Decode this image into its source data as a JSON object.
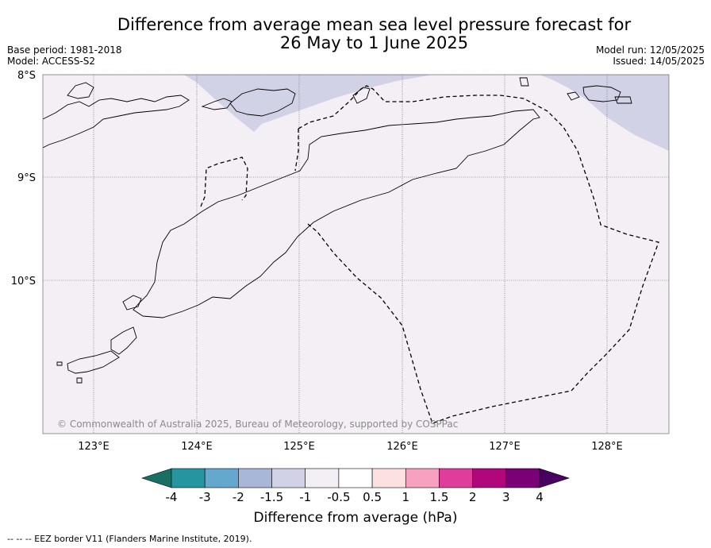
{
  "title": {
    "line1": "Difference from average mean sea level pressure forecast for",
    "line2": "26 May to 1 June 2025"
  },
  "meta": {
    "base_period": "Base period: 1981-2018",
    "model": "Model: ACCESS-S2",
    "model_run": "Model run: 12/05/2025",
    "issued": "Issued: 14/05/2025"
  },
  "map": {
    "lat_labels": [
      "8°S",
      "9°S",
      "10°S"
    ],
    "lon_labels": [
      "123°E",
      "124°E",
      "125°E",
      "126°E",
      "127°E",
      "128°E"
    ],
    "copyright": "© Commonwealth of Australia 2025, Bureau of Meteorology, supported by COSPPac",
    "background_color": "#f4eef5",
    "shade_color": "#d2d2e6"
  },
  "colorbar": {
    "ticks": [
      "-4",
      "-3",
      "-2",
      "-1.5",
      "-1",
      "-0.5",
      "0.5",
      "1",
      "1.5",
      "2",
      "3",
      "4"
    ],
    "colors": [
      "#1a6f65",
      "#2595a0",
      "#65a8cf",
      "#a8b6d8",
      "#d2d2e6",
      "#f4eef5",
      "#ffffff",
      "#fde0e0",
      "#f8a0bf",
      "#e03c9c",
      "#b0067e",
      "#7b0078",
      "#4a0060"
    ],
    "label": "Difference from average (hPa)"
  },
  "footnote": "--  --  -- EEZ border V11 (Flanders Marine Institute, 2019)."
}
